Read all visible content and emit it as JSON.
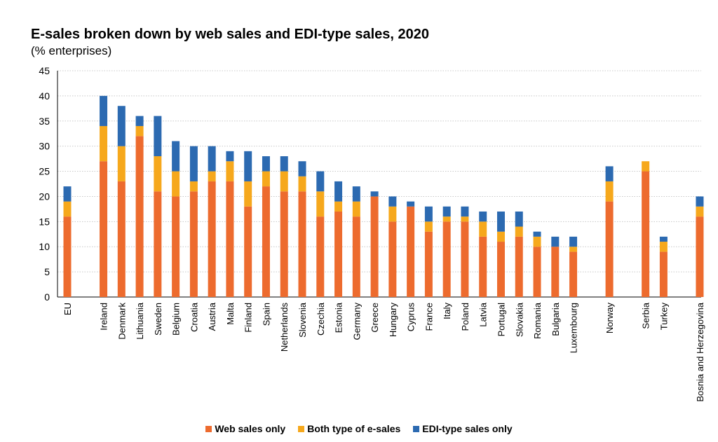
{
  "chart_data": {
    "type": "bar",
    "stacked": true,
    "title": "E-sales broken down by web sales and EDI-type sales, 2020",
    "subtitle": "(% enterprises)",
    "ylim": [
      0,
      45
    ],
    "yticks": [
      0,
      5,
      10,
      15,
      20,
      25,
      30,
      35,
      40,
      45
    ],
    "grid": true,
    "legend_position": "bottom",
    "categories": [
      "EU",
      "Ireland",
      "Denmark",
      "Lithuania",
      "Sweden",
      "Belgium",
      "Croatia",
      "Austria",
      "Malta",
      "Finland",
      "Spain",
      "Netherlands",
      "Slovenia",
      "Czechia",
      "Estonia",
      "Germany",
      "Greece",
      "Hungary",
      "Cyprus",
      "France",
      "Italy",
      "Poland",
      "Latvia",
      "Portugal",
      "Slovakia",
      "Romania",
      "Bulgaria",
      "Luxembourg",
      "Norway",
      "Serbia",
      "Turkey",
      "Bosnia and Herzegovina"
    ],
    "series": [
      {
        "name": "Web sales only",
        "color": "#ed6b2e",
        "values": [
          16,
          27,
          23,
          32,
          21,
          20,
          21,
          23,
          23,
          18,
          22,
          21,
          21,
          16,
          17,
          16,
          20,
          15,
          18,
          13,
          15,
          15,
          12,
          11,
          12,
          10,
          10,
          9,
          19,
          25,
          9,
          16
        ]
      },
      {
        "name": "Both type of e-sales",
        "color": "#f6a81c",
        "values": [
          3,
          7,
          7,
          2,
          7,
          5,
          2,
          2,
          4,
          5,
          3,
          4,
          3,
          5,
          2,
          3,
          0,
          3,
          0,
          2,
          1,
          1,
          3,
          2,
          2,
          2,
          0,
          1,
          4,
          2,
          2,
          2
        ]
      },
      {
        "name": "EDI-type sales only",
        "color": "#2c6ab1",
        "values": [
          3,
          6,
          8,
          2,
          8,
          6,
          7,
          5,
          2,
          6,
          3,
          3,
          3,
          4,
          4,
          3,
          1,
          2,
          1,
          3,
          2,
          2,
          2,
          4,
          3,
          1,
          2,
          2,
          3,
          0,
          1,
          2
        ]
      }
    ]
  }
}
